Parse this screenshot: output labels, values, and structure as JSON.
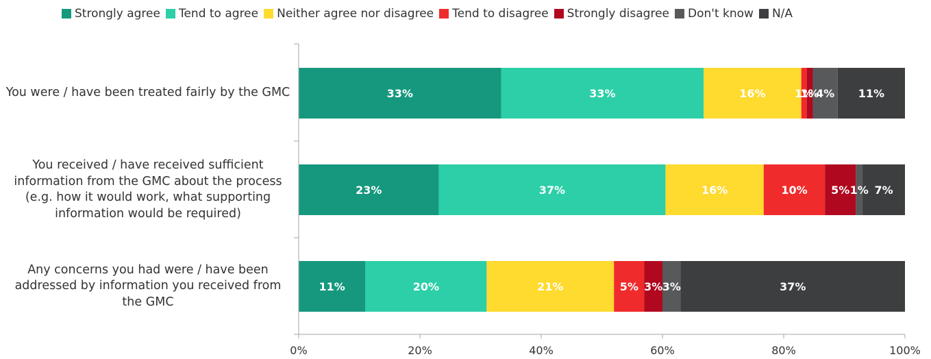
{
  "chart_data": {
    "type": "bar",
    "orientation": "horizontal",
    "stacked": true,
    "percent": true,
    "categories": [
      "You were / have been treated fairly by the GMC",
      "You received / have received sufficient information from the GMC about the process (e.g. how it would work, what supporting information would be required)",
      "Any concerns you had were /  have been addressed by information you received from the GMC"
    ],
    "series": [
      {
        "name": "Strongly agree",
        "color": "#15987e",
        "values": [
          33,
          23,
          11
        ]
      },
      {
        "name": "Tend to agree",
        "color": "#2ccfa7",
        "values": [
          33,
          37,
          20
        ]
      },
      {
        "name": "Neither agree nor disagree",
        "color": "#ffda2f",
        "values": [
          16,
          16,
          21
        ]
      },
      {
        "name": "Tend to disagree",
        "color": "#f02b2b",
        "values": [
          1,
          10,
          5
        ]
      },
      {
        "name": "Strongly disagree",
        "color": "#b0081f",
        "values": [
          1,
          5,
          3
        ]
      },
      {
        "name": "Don't know",
        "color": "#58595b",
        "values": [
          4,
          1,
          3
        ]
      },
      {
        "name": "N/A",
        "color": "#3d3e40",
        "values": [
          11,
          7,
          37
        ]
      }
    ],
    "data_labels": [
      [
        "33%",
        "33%",
        "16%",
        "1%",
        "1%",
        "4%",
        "11%"
      ],
      [
        "23%",
        "37%",
        "16%",
        "10%",
        "5%",
        "1%",
        "7%"
      ],
      [
        "11%",
        "20%",
        "21%",
        "5%",
        "3%",
        "3%",
        "37%"
      ]
    ],
    "segment_spans": [
      [
        33.4,
        33.4,
        16.1,
        0.9,
        1.0,
        4.1,
        11.1
      ],
      [
        23.1,
        37.4,
        16.2,
        10.1,
        5.1,
        1.1,
        7.0
      ],
      [
        11.0,
        20.0,
        21.0,
        5.0,
        3.0,
        3.0,
        37.0
      ]
    ],
    "xlim": [
      0,
      100
    ],
    "x_ticks": [
      "0%",
      "20%",
      "40%",
      "60%",
      "80%",
      "100%"
    ],
    "legend_position": "top",
    "grid": false,
    "title": "",
    "xlabel": "",
    "ylabel": ""
  }
}
